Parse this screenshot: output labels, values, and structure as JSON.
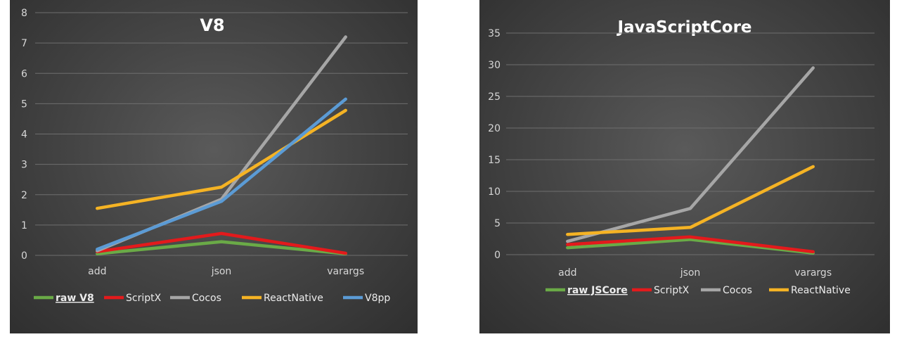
{
  "chart_data": [
    {
      "type": "line",
      "title": "V8",
      "categories": [
        "add",
        "json",
        "varargs"
      ],
      "ylim": [
        0,
        8
      ],
      "yticks": [
        0,
        1,
        2,
        3,
        4,
        5,
        6,
        7,
        8
      ],
      "grid": true,
      "legend_position": "bottom",
      "series": [
        {
          "name": "raw V8",
          "color": "#6aaa47",
          "values": [
            0.05,
            0.45,
            0.05
          ]
        },
        {
          "name": "ScriptX",
          "color": "#e31a1c",
          "values": [
            0.12,
            0.72,
            0.07
          ]
        },
        {
          "name": "Cocos",
          "color": "#a6a6a6",
          "values": [
            0.15,
            1.85,
            7.2
          ]
        },
        {
          "name": "ReactNative",
          "color": "#f5b324",
          "values": [
            1.55,
            2.25,
            4.78
          ]
        },
        {
          "name": "V8pp",
          "color": "#5b9bd5",
          "values": [
            0.2,
            1.78,
            5.15
          ]
        }
      ]
    },
    {
      "type": "line",
      "title": "JavaScriptCore",
      "categories": [
        "add",
        "json",
        "varargs"
      ],
      "ylim": [
        0,
        35
      ],
      "yticks": [
        0,
        5,
        10,
        15,
        20,
        25,
        30,
        35
      ],
      "grid": true,
      "legend_position": "bottom",
      "series": [
        {
          "name": "raw JSCore",
          "color": "#6aaa47",
          "values": [
            1.1,
            2.4,
            0.25
          ]
        },
        {
          "name": "ScriptX",
          "color": "#e31a1c",
          "values": [
            1.6,
            2.8,
            0.45
          ]
        },
        {
          "name": "Cocos",
          "color": "#a6a6a6",
          "values": [
            2.1,
            7.3,
            29.5
          ]
        },
        {
          "name": "ReactNative",
          "color": "#f5b324",
          "values": [
            3.2,
            4.3,
            13.9
          ]
        }
      ]
    }
  ]
}
